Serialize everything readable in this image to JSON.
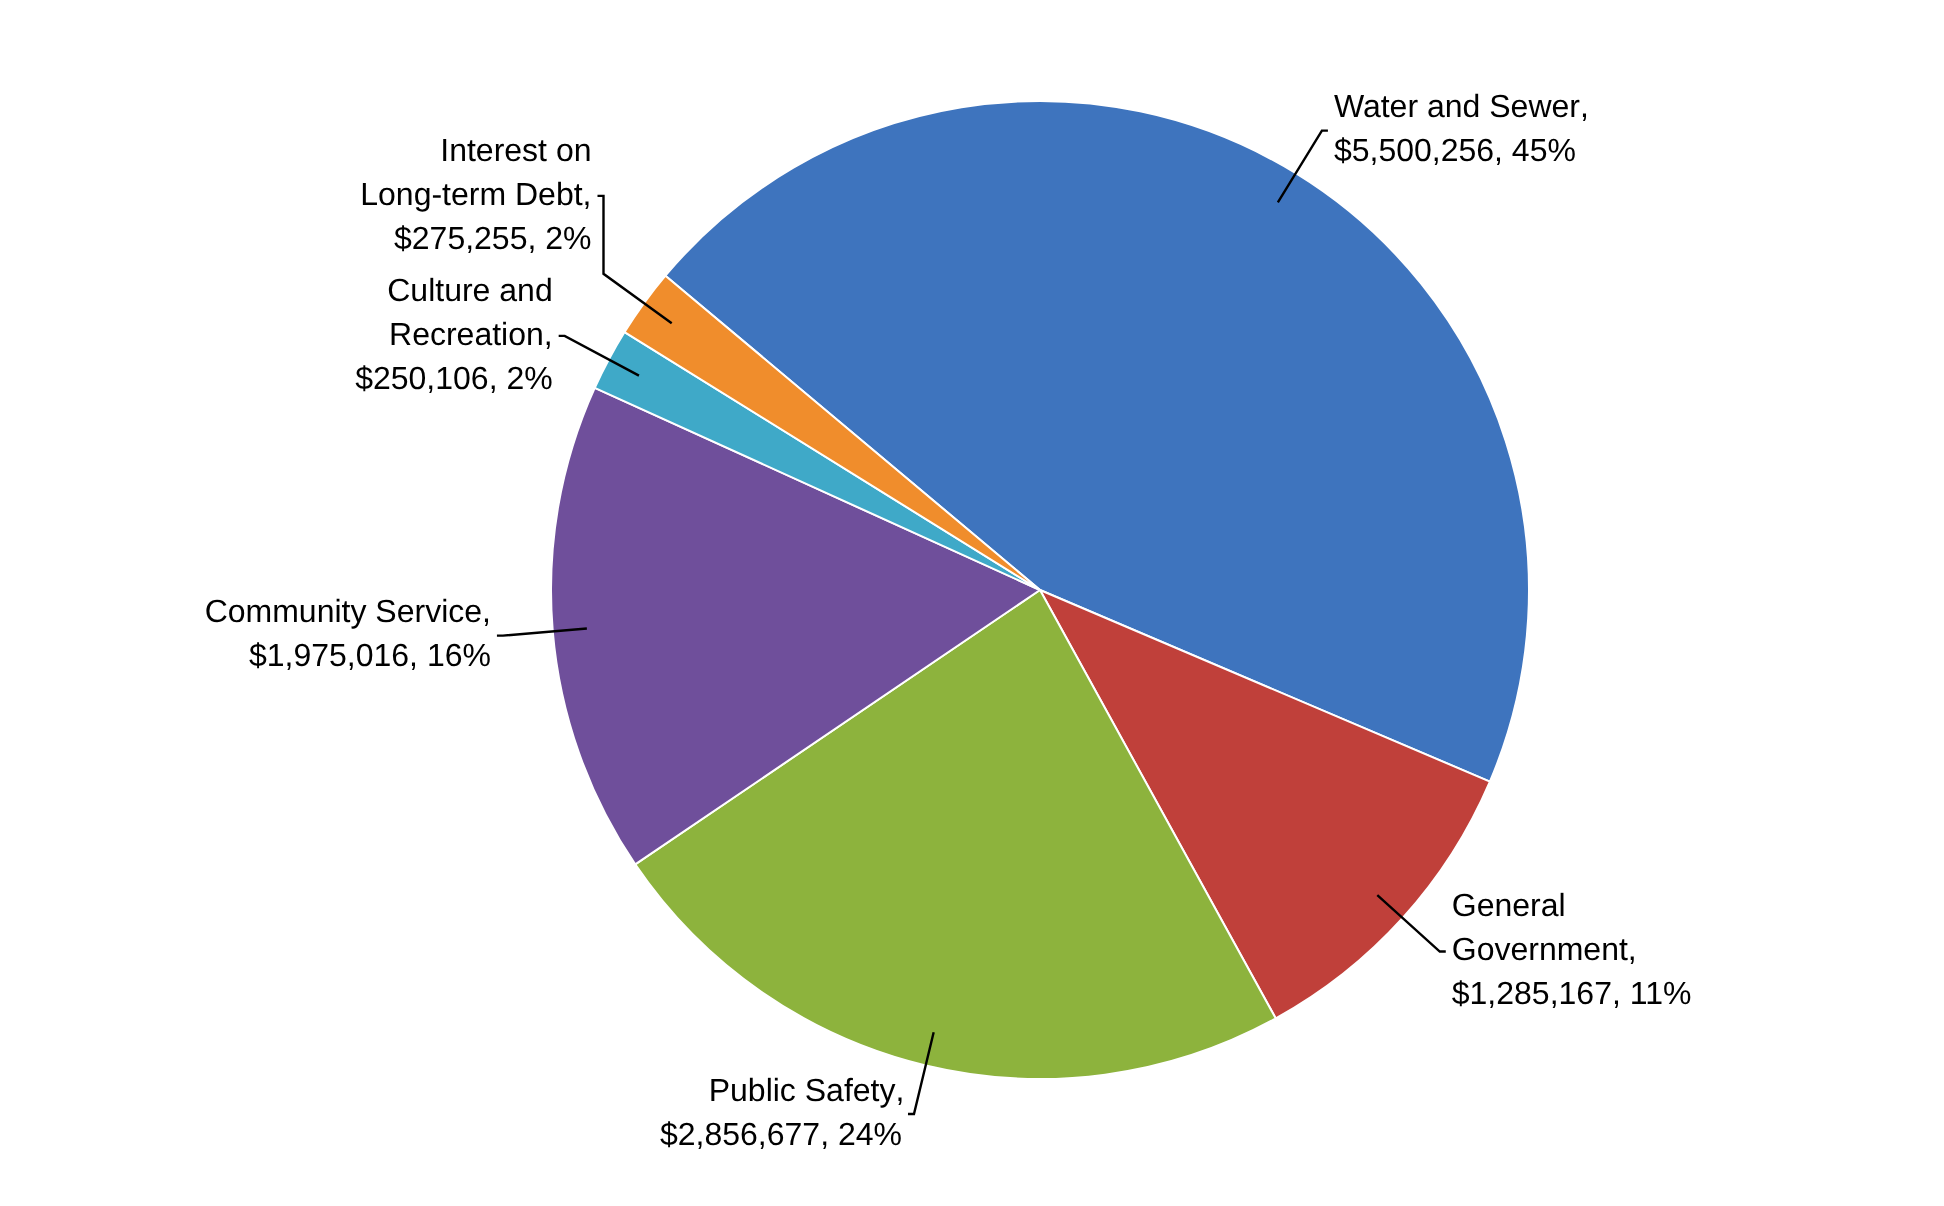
{
  "chart_data": {
    "type": "pie",
    "categories": [
      "Water and Sewer",
      "General Government",
      "Public Safety",
      "Community Service",
      "Culture and Recreation",
      "Interest on Long-term Debt"
    ],
    "values": [
      5500256,
      1285167,
      2856677,
      1975016,
      250106,
      275255
    ],
    "value_labels": [
      ", $5,500,256, 45%",
      ", $1,285,167, 11%",
      ", $2,856,677, 24%",
      ", $1,975,016, 16%",
      ", $250,106, 2%",
      ", $275,255, 2%"
    ],
    "colors": [
      "#3e74be",
      "#c0403a",
      "#8db33d",
      "#6f4f9b",
      "#3fa9c8",
      "#f08d2c"
    ],
    "legend": false
  }
}
